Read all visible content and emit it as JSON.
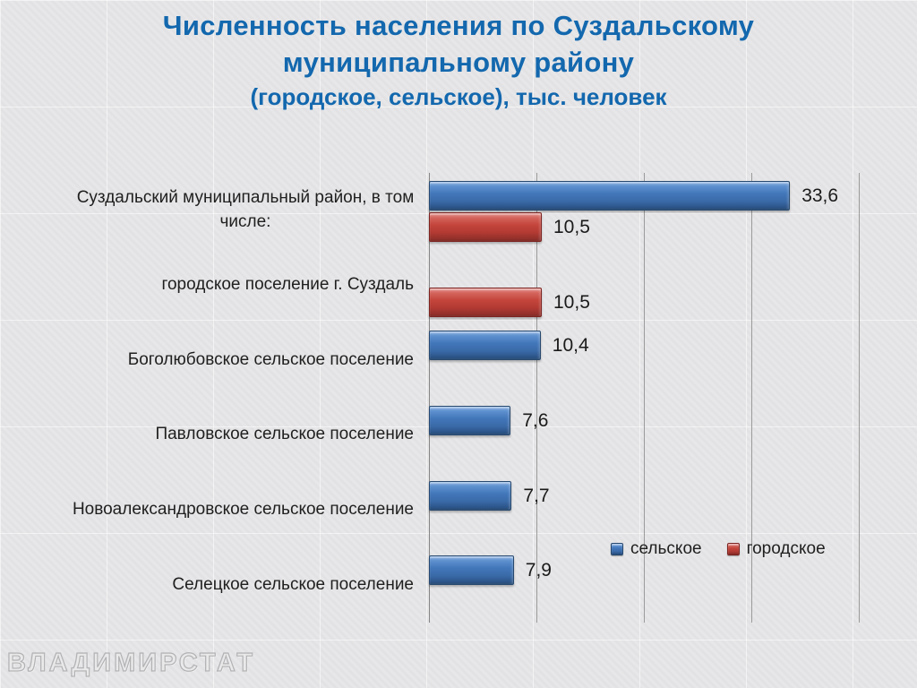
{
  "title": {
    "line1": "Численность населения по Суздальскому",
    "line2": "муниципальному району",
    "line3": "(городское, сельское), тыс. человек"
  },
  "watermark": "ВЛАДИМИРСТАТ",
  "colors": {
    "title": "#1368ae",
    "rural_bar": "#3f72b7",
    "urban_bar": "#c2423a",
    "gridline": "#9b9b9b",
    "axis": "#858585",
    "background": "#e6e6e8",
    "text": "#1f1f1f"
  },
  "chart_data": {
    "type": "bar",
    "orientation": "horizontal",
    "title": "Численность населения по Суздальскому муниципальному району (городское, сельское), тыс. человек",
    "unit": "тыс. человек",
    "categories": [
      "Суздальский муниципальный район, в том числе:",
      "городское поселение г. Суздаль",
      "Боголюбовское сельское поселение",
      "Павловское сельское поселение",
      "Новоалександровское сельское поселение",
      "Селецкое сельское поселение"
    ],
    "series": [
      {
        "name": "сельское",
        "color": "#3f72b7",
        "values": [
          33.6,
          null,
          10.4,
          7.6,
          7.7,
          7.9
        ]
      },
      {
        "name": "городское",
        "color": "#c2423a",
        "values": [
          10.5,
          10.5,
          null,
          null,
          null,
          null
        ]
      }
    ],
    "data_labels": {
      "сельское": [
        "33,6",
        null,
        "10,4",
        "7,6",
        "7,7",
        "7,9"
      ],
      "городское": [
        "10,5",
        "10,5",
        null,
        null,
        null,
        null
      ]
    },
    "xlim": [
      0,
      40
    ],
    "gridline_step": 10,
    "grid": "vertical-only",
    "legend_position": "inside-bottom-right",
    "legend_entries": [
      "сельское",
      "городское"
    ]
  }
}
